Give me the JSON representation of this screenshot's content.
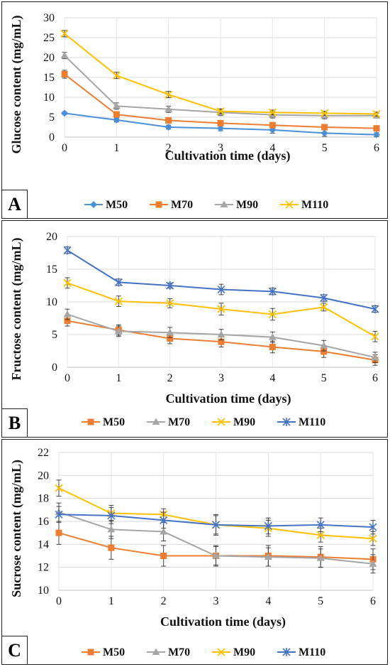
{
  "chart_data": [
    {
      "panel": "A",
      "type": "line",
      "xlabel": "Cultivation time (days)",
      "ylabel": "Glucose content (mg/mL)",
      "x": [
        0,
        1,
        2,
        3,
        4,
        5,
        6
      ],
      "ylim": [
        0,
        30
      ],
      "yticks": [
        0,
        5,
        10,
        15,
        20,
        25,
        30
      ],
      "grid": true,
      "legend": "bottom",
      "series": [
        {
          "name": "M50",
          "color": "#4a90d9",
          "marker": "diamond",
          "values": [
            6.0,
            4.3,
            2.5,
            2.2,
            1.8,
            1.0,
            0.6
          ],
          "errors": [
            0.3,
            0.5,
            0.5,
            0.6,
            0.8,
            0.8,
            0.5
          ]
        },
        {
          "name": "M70",
          "color": "#ed7d31",
          "marker": "square",
          "values": [
            15.8,
            5.7,
            4.2,
            3.5,
            3.0,
            2.5,
            2.2
          ],
          "errors": [
            1.0,
            0.6,
            0.6,
            0.6,
            0.6,
            0.6,
            0.6
          ]
        },
        {
          "name": "M90",
          "color": "#a5a5a5",
          "marker": "triangle",
          "values": [
            20.5,
            7.8,
            7.0,
            6.2,
            5.6,
            5.4,
            5.4
          ],
          "errors": [
            0.8,
            0.8,
            0.8,
            0.8,
            0.8,
            0.8,
            0.6
          ]
        },
        {
          "name": "M110",
          "color": "#ffc000",
          "marker": "x",
          "values": [
            26.0,
            15.5,
            10.7,
            6.5,
            6.2,
            6.0,
            5.8
          ],
          "errors": [
            0.8,
            0.8,
            0.8,
            0.6,
            0.6,
            0.5,
            0.5
          ]
        }
      ]
    },
    {
      "panel": "B",
      "type": "line",
      "xlabel": "Cultivation time (days)",
      "ylabel": "Fructose  content (mg/mL)",
      "x": [
        0,
        1,
        2,
        3,
        4,
        5,
        6
      ],
      "ylim": [
        0,
        20
      ],
      "yticks": [
        0,
        5,
        10,
        15,
        20
      ],
      "grid": true,
      "legend": "bottom",
      "series": [
        {
          "name": "M50",
          "color": "#ed7d31",
          "marker": "square",
          "values": [
            7.1,
            5.7,
            4.4,
            3.9,
            3.1,
            2.4,
            1.1
          ],
          "errors": [
            0.8,
            0.8,
            0.8,
            0.8,
            0.9,
            0.9,
            0.8
          ]
        },
        {
          "name": "M70",
          "color": "#a5a5a5",
          "marker": "triangle",
          "values": [
            8.1,
            5.5,
            5.3,
            5.0,
            4.6,
            3.3,
            1.5
          ],
          "errors": [
            0.8,
            0.8,
            0.8,
            0.8,
            0.8,
            0.8,
            0.8
          ]
        },
        {
          "name": "M90",
          "color": "#ffc000",
          "marker": "x",
          "values": [
            12.9,
            10.1,
            9.8,
            8.9,
            8.1,
            9.2,
            4.7
          ],
          "errors": [
            0.8,
            0.8,
            0.7,
            0.9,
            0.9,
            0.6,
            0.8
          ]
        },
        {
          "name": "M110",
          "color": "#4472c4",
          "marker": "asterisk",
          "values": [
            17.9,
            13.0,
            12.5,
            11.9,
            11.6,
            10.6,
            8.9
          ],
          "errors": [
            0.5,
            0.5,
            0.4,
            0.8,
            0.5,
            0.5,
            0.5
          ]
        }
      ]
    },
    {
      "panel": "C",
      "type": "line",
      "xlabel": "Cultivation time (days)",
      "ylabel": "Sucrose content (mg/mL)",
      "x": [
        0,
        1,
        2,
        3,
        4,
        5,
        6
      ],
      "ylim": [
        10,
        22
      ],
      "yticks": [
        10,
        12,
        14,
        16,
        18,
        20,
        22
      ],
      "grid": true,
      "legend": "bottom",
      "series": [
        {
          "name": "M50",
          "color": "#ed7d31",
          "marker": "square",
          "values": [
            15.0,
            13.7,
            13.0,
            13.0,
            13.0,
            12.9,
            12.7
          ],
          "errors": [
            1.0,
            1.0,
            0.9,
            0.9,
            0.9,
            0.9,
            0.9
          ]
        },
        {
          "name": "M70",
          "color": "#a5a5a5",
          "marker": "triangle",
          "values": [
            16.8,
            15.3,
            15.1,
            13.0,
            12.9,
            12.8,
            12.3
          ],
          "errors": [
            0.8,
            0.8,
            0.8,
            0.8,
            0.8,
            0.8,
            0.8
          ]
        },
        {
          "name": "M90",
          "color": "#ffc000",
          "marker": "x",
          "values": [
            18.9,
            16.7,
            16.6,
            15.7,
            15.4,
            14.8,
            14.5
          ],
          "errors": [
            0.7,
            0.7,
            0.5,
            0.8,
            0.7,
            0.6,
            0.6
          ]
        },
        {
          "name": "M110",
          "color": "#4472c4",
          "marker": "asterisk",
          "values": [
            16.6,
            16.5,
            16.1,
            15.7,
            15.6,
            15.7,
            15.5
          ],
          "errors": [
            0.7,
            0.7,
            0.7,
            0.9,
            0.7,
            0.6,
            0.6
          ]
        }
      ]
    }
  ]
}
